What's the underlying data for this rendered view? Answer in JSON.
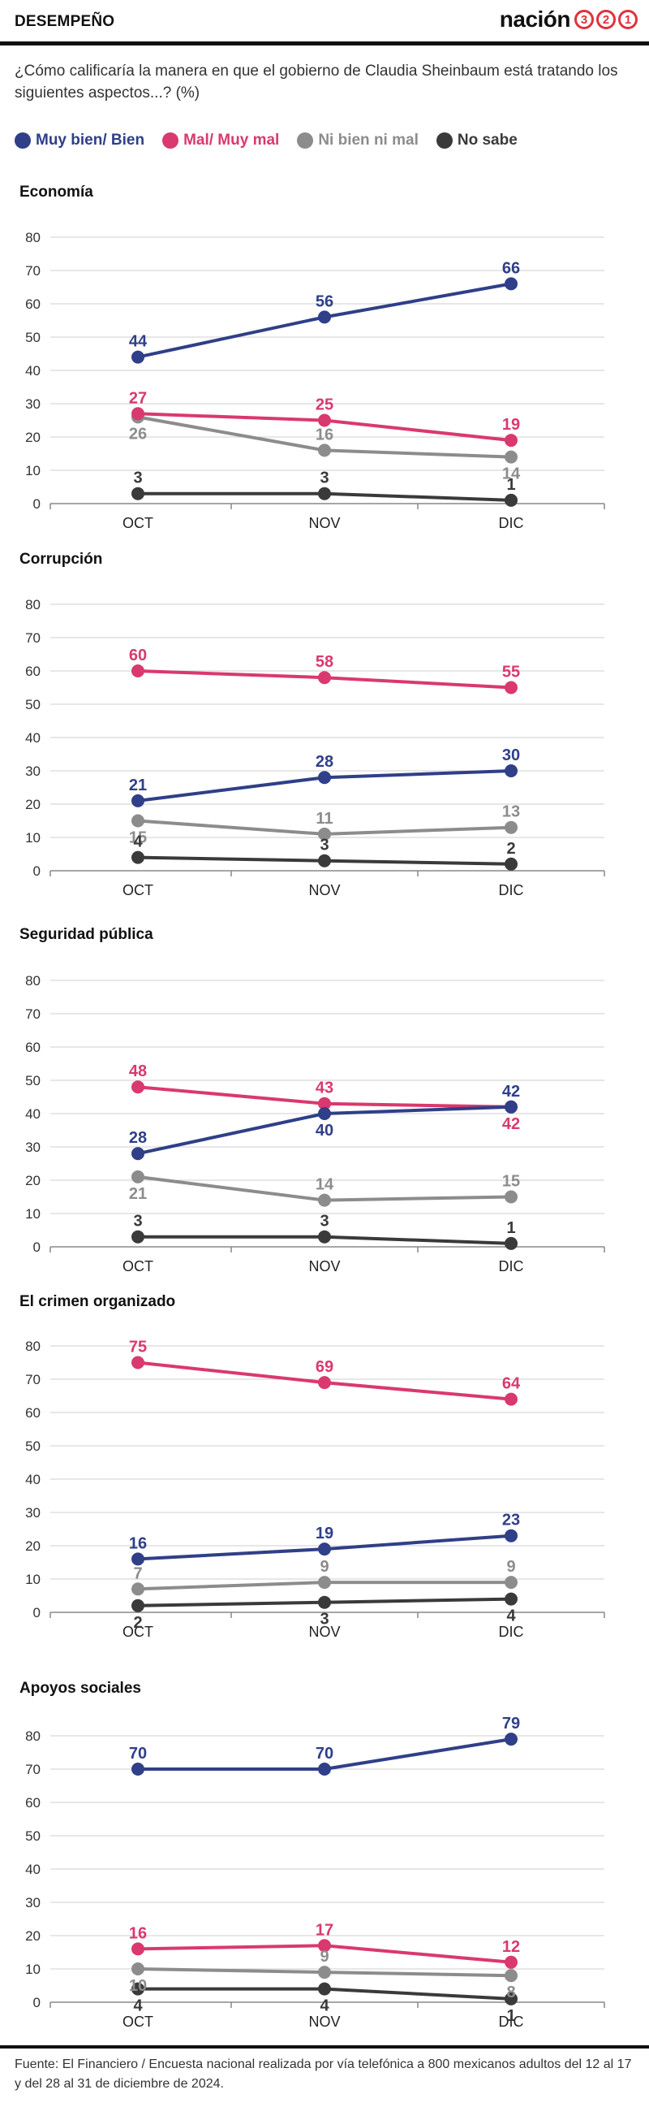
{
  "header": {
    "section": "DESEMPEÑO",
    "brand_word": "nación",
    "brand_digits": [
      "3",
      "2",
      "1"
    ]
  },
  "question": "¿Cómo calificaría la manera en que el gobierno de Claudia Sheinbaum está tratando los siguientes aspectos...? (%)",
  "legend": [
    {
      "label": "Muy bien/ Bien",
      "color": "#2f3f88"
    },
    {
      "label": "Mal/ Muy mal",
      "color": "#d9396e"
    },
    {
      "label": "Ni bien ni mal",
      "color": "#8c8c8c"
    },
    {
      "label": "No sabe",
      "color": "#3a3a3a"
    }
  ],
  "chart_data": [
    {
      "type": "line",
      "title": "Economía",
      "categories": [
        "OCT",
        "NOV",
        "DIC"
      ],
      "ylim": [
        0,
        80
      ],
      "yticks": [
        0,
        10,
        20,
        30,
        40,
        50,
        60,
        70,
        80
      ],
      "grid": true,
      "series": [
        {
          "name": "Muy bien/ Bien",
          "color": "#2f3f88",
          "values": [
            44,
            56,
            66
          ]
        },
        {
          "name": "Mal/ Muy mal",
          "color": "#d9396e",
          "values": [
            27,
            25,
            19
          ]
        },
        {
          "name": "Ni bien ni mal",
          "color": "#8c8c8c",
          "values": [
            26,
            16,
            14
          ]
        },
        {
          "name": "No sabe",
          "color": "#3a3a3a",
          "values": [
            3,
            3,
            1
          ]
        }
      ]
    },
    {
      "type": "line",
      "title": "Corrupción",
      "categories": [
        "OCT",
        "NOV",
        "DIC"
      ],
      "ylim": [
        0,
        80
      ],
      "yticks": [
        0,
        10,
        20,
        30,
        40,
        50,
        60,
        70,
        80
      ],
      "grid": true,
      "series": [
        {
          "name": "Muy bien/ Bien",
          "color": "#2f3f88",
          "values": [
            21,
            28,
            30
          ]
        },
        {
          "name": "Mal/ Muy mal",
          "color": "#d9396e",
          "values": [
            60,
            58,
            55
          ]
        },
        {
          "name": "Ni bien ni mal",
          "color": "#8c8c8c",
          "values": [
            15,
            11,
            13
          ]
        },
        {
          "name": "No sabe",
          "color": "#3a3a3a",
          "values": [
            4,
            3,
            2
          ]
        }
      ]
    },
    {
      "type": "line",
      "title": "Seguridad pública",
      "categories": [
        "OCT",
        "NOV",
        "DIC"
      ],
      "ylim": [
        0,
        80
      ],
      "yticks": [
        0,
        10,
        20,
        30,
        40,
        50,
        60,
        70,
        80
      ],
      "grid": true,
      "series": [
        {
          "name": "Muy bien/ Bien",
          "color": "#2f3f88",
          "values": [
            28,
            40,
            42
          ]
        },
        {
          "name": "Mal/ Muy mal",
          "color": "#d9396e",
          "values": [
            48,
            43,
            42
          ]
        },
        {
          "name": "Ni bien ni mal",
          "color": "#8c8c8c",
          "values": [
            21,
            14,
            15
          ]
        },
        {
          "name": "No sabe",
          "color": "#3a3a3a",
          "values": [
            3,
            3,
            1
          ]
        }
      ]
    },
    {
      "type": "line",
      "title": "El crimen organizado",
      "categories": [
        "OCT",
        "NOV",
        "DIC"
      ],
      "ylim": [
        0,
        80
      ],
      "yticks": [
        0,
        10,
        20,
        30,
        40,
        50,
        60,
        70,
        80
      ],
      "grid": true,
      "series": [
        {
          "name": "Muy bien/ Bien",
          "color": "#2f3f88",
          "values": [
            16,
            19,
            23
          ]
        },
        {
          "name": "Mal/ Muy mal",
          "color": "#d9396e",
          "values": [
            75,
            69,
            64
          ]
        },
        {
          "name": "Ni bien ni mal",
          "color": "#8c8c8c",
          "values": [
            7,
            9,
            9
          ]
        },
        {
          "name": "No sabe",
          "color": "#3a3a3a",
          "values": [
            2,
            3,
            4
          ]
        }
      ]
    },
    {
      "type": "line",
      "title": "Apoyos sociales",
      "categories": [
        "OCT",
        "NOV",
        "DIC"
      ],
      "ylim": [
        0,
        80
      ],
      "yticks": [
        0,
        10,
        20,
        30,
        40,
        50,
        60,
        70,
        80
      ],
      "grid": true,
      "series": [
        {
          "name": "Muy bien/ Bien",
          "color": "#2f3f88",
          "values": [
            70,
            70,
            79
          ]
        },
        {
          "name": "Mal/ Muy mal",
          "color": "#d9396e",
          "values": [
            16,
            17,
            12
          ]
        },
        {
          "name": "Ni bien ni mal",
          "color": "#8c8c8c",
          "values": [
            10,
            9,
            8
          ]
        },
        {
          "name": "No sabe",
          "color": "#3a3a3a",
          "values": [
            4,
            4,
            1
          ]
        }
      ]
    }
  ],
  "footer": {
    "source": "Fuente: El Financiero / Encuesta nacional realizada por vía telefónica a 800 mexicanos adultos del 12 al 17 y del 28 al 31 de diciembre de 2024."
  }
}
